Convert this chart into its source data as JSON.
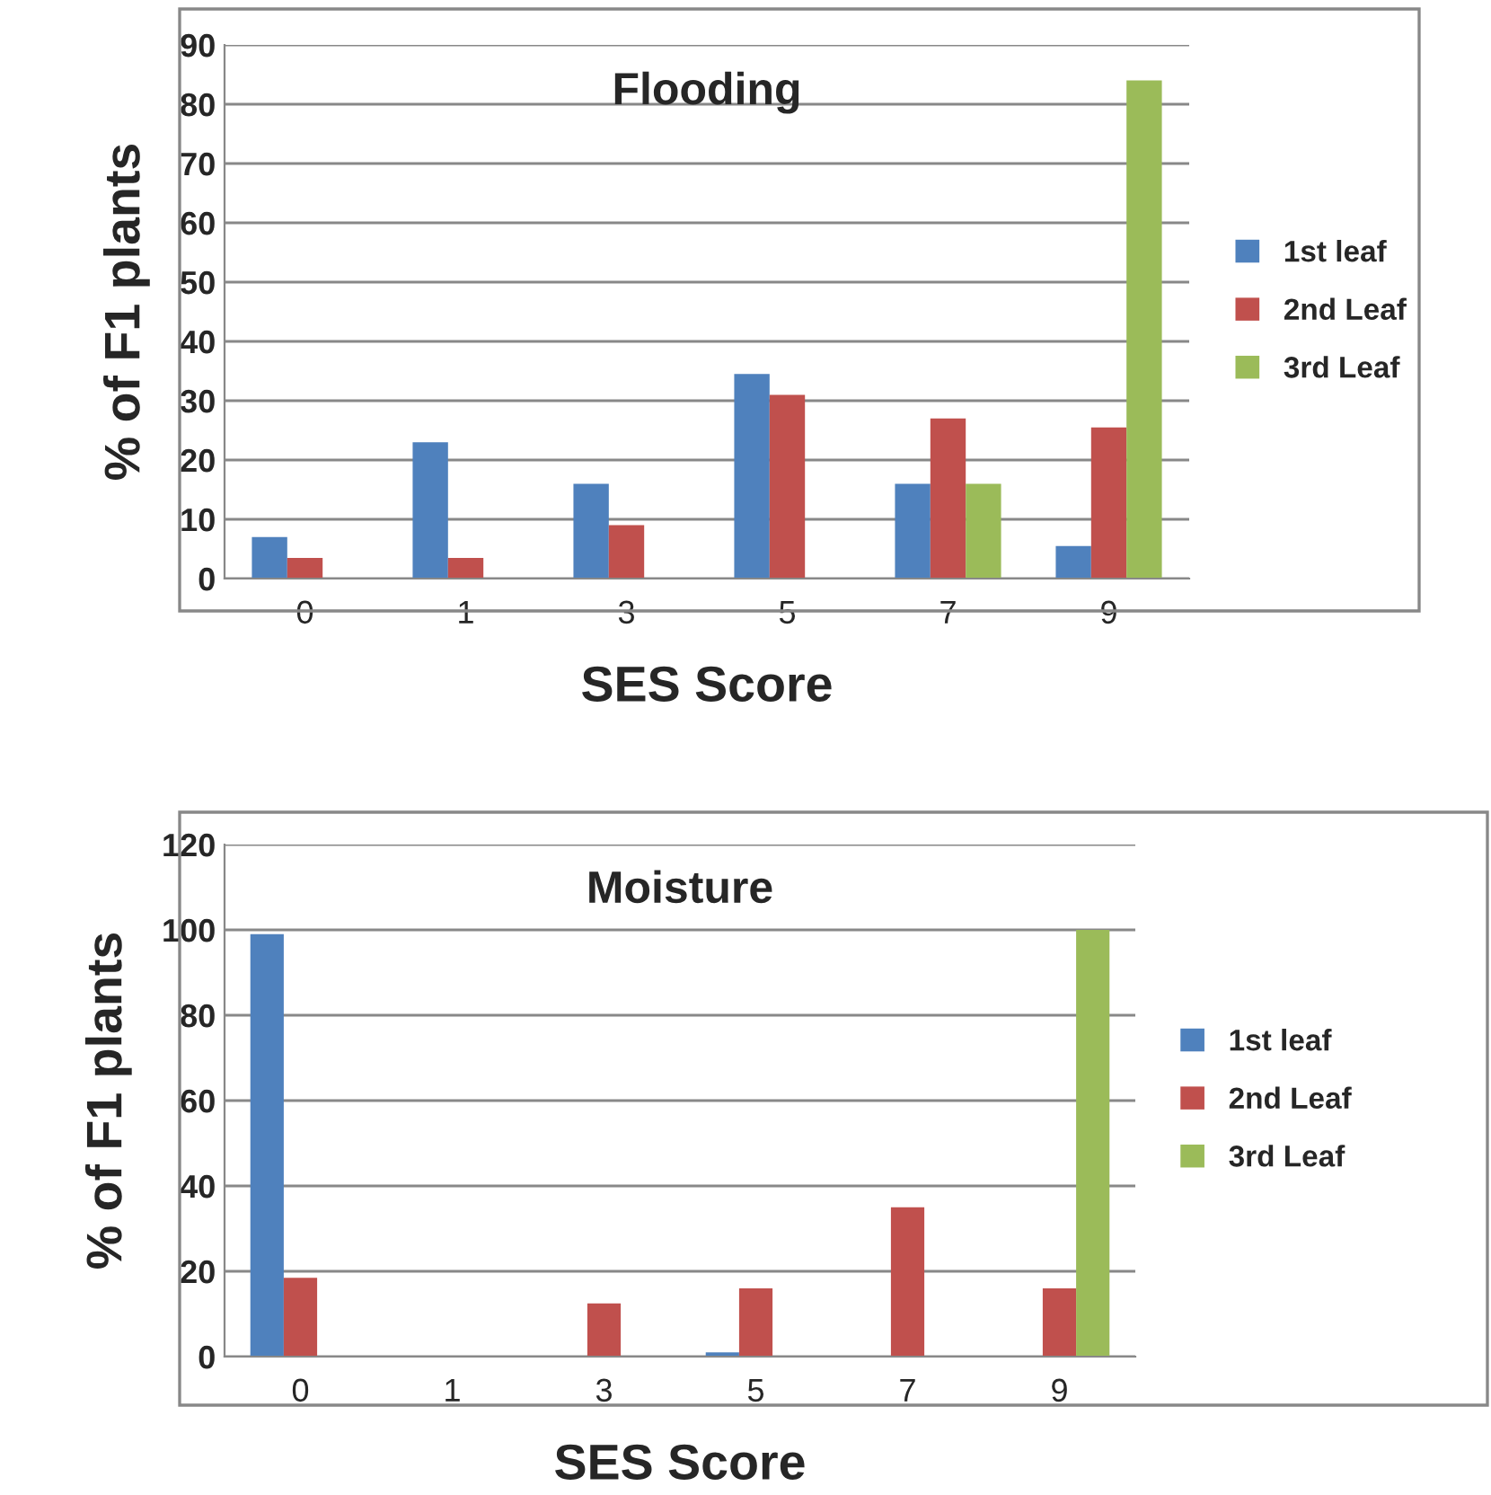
{
  "chart_data": [
    {
      "type": "bar",
      "title": "Flooding",
      "xlabel": "SES Score",
      "ylabel": "% of F1 plants",
      "categories": [
        "0",
        "1",
        "3",
        "5",
        "7",
        "9"
      ],
      "series": [
        {
          "name": "1st leaf",
          "color": "#4f81bd",
          "values": [
            7,
            23,
            16,
            34.5,
            16,
            5.5
          ]
        },
        {
          "name": "2nd Leaf",
          "color": "#c0504d",
          "values": [
            3.5,
            3.5,
            9,
            31,
            27,
            25.5
          ]
        },
        {
          "name": "3rd Leaf",
          "color": "#9bbb59",
          "values": [
            0,
            0,
            0,
            0,
            16,
            84
          ]
        }
      ],
      "ylim": [
        0,
        90
      ],
      "yticks": [
        0,
        10,
        20,
        30,
        40,
        50,
        60,
        70,
        80,
        90
      ],
      "grid": "y",
      "legend": "right"
    },
    {
      "type": "bar",
      "title": "Moisture",
      "xlabel": "SES Score",
      "ylabel": "% of F1 plants",
      "categories": [
        "0",
        "1",
        "3",
        "5",
        "7",
        "9"
      ],
      "series": [
        {
          "name": "1st leaf",
          "color": "#4f81bd",
          "values": [
            99,
            0,
            0,
            1,
            0,
            0
          ]
        },
        {
          "name": "2nd Leaf",
          "color": "#c0504d",
          "values": [
            18.5,
            0,
            12.5,
            16,
            35,
            16
          ]
        },
        {
          "name": "3rd Leaf",
          "color": "#9bbb59",
          "values": [
            0,
            0,
            0,
            0,
            0,
            100
          ]
        }
      ],
      "ylim": [
        0,
        120
      ],
      "yticks": [
        0,
        20,
        40,
        60,
        80,
        100,
        120
      ],
      "grid": "y",
      "legend": "right"
    }
  ]
}
